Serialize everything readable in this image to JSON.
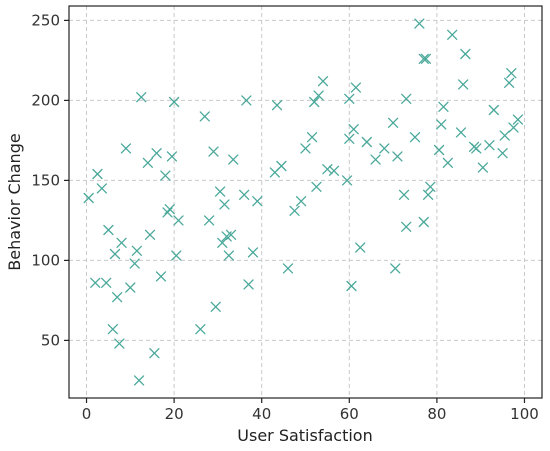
{
  "chart_data": {
    "type": "scatter",
    "title": "",
    "xlabel": "User Satisfaction",
    "ylabel": "Behavior Change",
    "xlim": [
      -4,
      104
    ],
    "ylim": [
      14,
      259
    ],
    "xticks": [
      0,
      20,
      40,
      60,
      80,
      100
    ],
    "yticks": [
      50,
      100,
      150,
      200,
      250
    ],
    "grid": true,
    "marker": "x",
    "color": "#4aa89a",
    "series": [
      {
        "points": [
          [
            0.5,
            139
          ],
          [
            2,
            86
          ],
          [
            2.5,
            154
          ],
          [
            3.5,
            145
          ],
          [
            4.5,
            86
          ],
          [
            5,
            119
          ],
          [
            6,
            57
          ],
          [
            6.5,
            104
          ],
          [
            7,
            77
          ],
          [
            7.5,
            48
          ],
          [
            8,
            111
          ],
          [
            9,
            170
          ],
          [
            10,
            83
          ],
          [
            11,
            98
          ],
          [
            11.5,
            106
          ],
          [
            12,
            25
          ],
          [
            12.5,
            202
          ],
          [
            14,
            161
          ],
          [
            14.5,
            116
          ],
          [
            15.5,
            42
          ],
          [
            16,
            167
          ],
          [
            17,
            90
          ],
          [
            18,
            153
          ],
          [
            18.5,
            130
          ],
          [
            19,
            132
          ],
          [
            19.5,
            165
          ],
          [
            20,
            199
          ],
          [
            20.5,
            103
          ],
          [
            21,
            125
          ],
          [
            26,
            57
          ],
          [
            27,
            190
          ],
          [
            28,
            125
          ],
          [
            29,
            168
          ],
          [
            29.5,
            71
          ],
          [
            30.5,
            143
          ],
          [
            31,
            111
          ],
          [
            31.5,
            135
          ],
          [
            32,
            115
          ],
          [
            32.5,
            103
          ],
          [
            33,
            116
          ],
          [
            33.5,
            163
          ],
          [
            36,
            141
          ],
          [
            36.5,
            200
          ],
          [
            37,
            85
          ],
          [
            38,
            105
          ],
          [
            39,
            137
          ],
          [
            43,
            155
          ],
          [
            43.5,
            197
          ],
          [
            44.5,
            159
          ],
          [
            46,
            95
          ],
          [
            47.5,
            131
          ],
          [
            49,
            137
          ],
          [
            50,
            170
          ],
          [
            51.5,
            177
          ],
          [
            52,
            199
          ],
          [
            52.5,
            146
          ],
          [
            53,
            203
          ],
          [
            54,
            212
          ],
          [
            55,
            157
          ],
          [
            56.5,
            156
          ],
          [
            59.5,
            150
          ],
          [
            60,
            176
          ],
          [
            60,
            201
          ],
          [
            60.5,
            84
          ],
          [
            61,
            182
          ],
          [
            61.5,
            208
          ],
          [
            62.5,
            108
          ],
          [
            64,
            174
          ],
          [
            66,
            163
          ],
          [
            68,
            170
          ],
          [
            70,
            186
          ],
          [
            70.5,
            95
          ],
          [
            71,
            165
          ],
          [
            72.5,
            141
          ],
          [
            73,
            121
          ],
          [
            73,
            201
          ],
          [
            75,
            177
          ],
          [
            76,
            248
          ],
          [
            77,
            124
          ],
          [
            77,
            226
          ],
          [
            77.5,
            226
          ],
          [
            78,
            141
          ],
          [
            78.5,
            146
          ],
          [
            80.5,
            169
          ],
          [
            81,
            185
          ],
          [
            81.5,
            196
          ],
          [
            82.5,
            161
          ],
          [
            83.5,
            241
          ],
          [
            85.5,
            180
          ],
          [
            86,
            210
          ],
          [
            86.5,
            229
          ],
          [
            88.5,
            171
          ],
          [
            89,
            170
          ],
          [
            90.5,
            158
          ],
          [
            92,
            172
          ],
          [
            93,
            194
          ],
          [
            95,
            167
          ],
          [
            95.5,
            178
          ],
          [
            96.5,
            211
          ],
          [
            97,
            217
          ],
          [
            97.5,
            183
          ],
          [
            98.5,
            188
          ]
        ]
      }
    ]
  }
}
